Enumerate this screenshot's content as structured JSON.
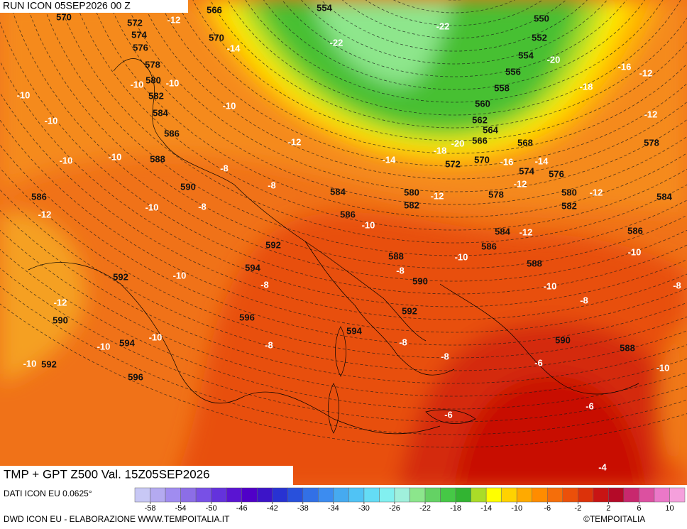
{
  "header": {
    "run": "RUN ICON 05SEP2026 00 Z",
    "title": "TMP + GPT Z500 Val. 15Z05SEP2026"
  },
  "footer": {
    "source": "DATI ICON EU 0.0625°",
    "credit": "DWD ICON EU - ELABORAZIONE WWW.TEMPOITALIA.IT",
    "brand": "©TEMPOITALIA"
  },
  "legend": {
    "lim": [
      -60,
      12
    ],
    "ticks": [
      -58,
      -54,
      -50,
      -46,
      -42,
      -38,
      -34,
      -30,
      -26,
      -22,
      -18,
      -14,
      -10,
      -6,
      -2,
      2,
      6,
      10
    ],
    "colors": [
      "#c8c8f5",
      "#b4aaf0",
      "#a08cf0",
      "#8c6ee6",
      "#7850e6",
      "#6432dc",
      "#5a14d2",
      "#5000c8",
      "#3c14c8",
      "#2832d2",
      "#2850dc",
      "#3270e6",
      "#3c8cf0",
      "#46aaf0",
      "#50c3f5",
      "#64dcf5",
      "#82f0f0",
      "#a0f0dc",
      "#8ce68c",
      "#64d264",
      "#46c846",
      "#32b432",
      "#aadc28",
      "#ffff00",
      "#ffd200",
      "#ffaa00",
      "#ff8c00",
      "#f56e0a",
      "#eb500a",
      "#dc320a",
      "#c81414",
      "#b40a28",
      "#c8286e",
      "#dc50a0",
      "#eb78c8",
      "#f5a0dc"
    ]
  },
  "height_labels": [
    566,
    554,
    550,
    570,
    572,
    574,
    576,
    570,
    552,
    554,
    578,
    556,
    580,
    558,
    582,
    560,
    584,
    562,
    564,
    586,
    566,
    568,
    578,
    588,
    572,
    570,
    574,
    576,
    590,
    584,
    580,
    578,
    580,
    584,
    586,
    582,
    582,
    586,
    584,
    586,
    592,
    586,
    588,
    594,
    588,
    592,
    590,
    596,
    592,
    594,
    590,
    590,
    594,
    588,
    592,
    596
  ],
  "temperature_labels": [
    -12,
    -22,
    -22,
    -14,
    -20,
    -16,
    -12,
    -10,
    -10,
    -18,
    -10,
    -10,
    -12,
    -10,
    -12,
    -18,
    -20,
    -10,
    -14,
    -16,
    -14,
    -10,
    -8,
    -12,
    -8,
    -12,
    -12,
    -8,
    -10,
    -12,
    -10,
    -12,
    -10,
    -10,
    -8,
    -10,
    -8,
    -10,
    -12,
    -8,
    -8,
    -10,
    -8,
    -10,
    -8,
    -8,
    -10,
    -6,
    -10,
    -6,
    -6,
    -4
  ]
}
